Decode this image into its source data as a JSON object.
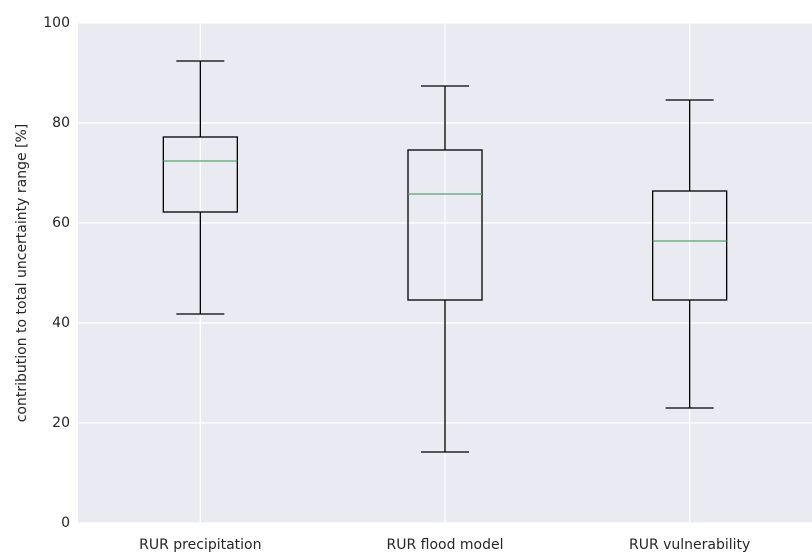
{
  "chart_data": {
    "type": "box",
    "ylabel": "contribution to total uncertainty range [%]",
    "categories": [
      "RUR precipitation",
      "RUR flood model",
      "RUR vulnerability"
    ],
    "boxes": [
      {
        "whislo": 41.8,
        "q1": 62.2,
        "med": 72.4,
        "q3": 77.2,
        "whishi": 92.4
      },
      {
        "whislo": 14.2,
        "q1": 44.6,
        "med": 65.8,
        "q3": 74.6,
        "whishi": 87.4
      },
      {
        "whislo": 23,
        "q1": 44.6,
        "med": 56.4,
        "q3": 66.4,
        "whishi": 84.6
      }
    ],
    "box_color": "#000000",
    "median_color": "#55a868",
    "background": "#eaeaf2",
    "ylim": [
      0,
      100
    ],
    "yticks": [
      0,
      20,
      40,
      60,
      80,
      100
    ],
    "grid": true
  }
}
